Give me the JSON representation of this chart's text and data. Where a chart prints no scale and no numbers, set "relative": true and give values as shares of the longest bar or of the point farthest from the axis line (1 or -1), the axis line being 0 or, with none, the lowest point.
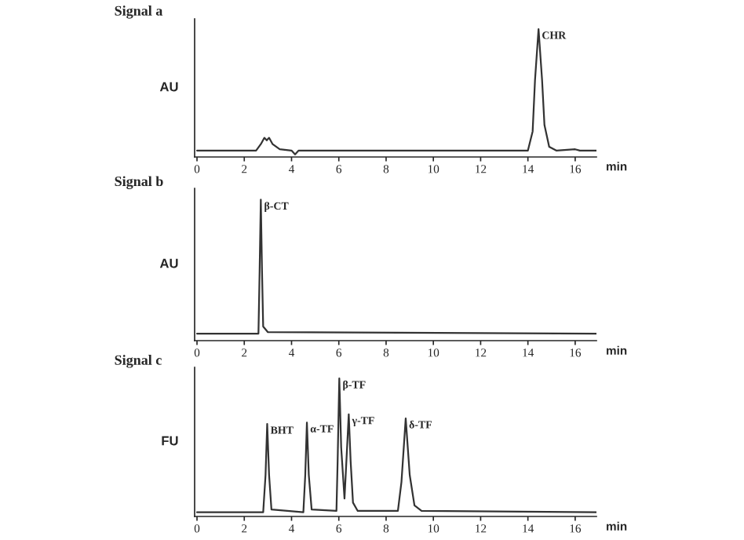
{
  "chart_data": [
    {
      "type": "line",
      "title": "Signal a",
      "ylabel": "AU",
      "xlabel": "min",
      "relative": true,
      "x": [
        0,
        2.5,
        2.7,
        2.85,
        2.95,
        3.05,
        3.2,
        3.5,
        4.0,
        4.15,
        4.3,
        14.0,
        14.2,
        14.3,
        14.45,
        14.6,
        14.7,
        14.9,
        15.2,
        16.0,
        16.2,
        16.9
      ],
      "series": [
        {
          "color": "#333333",
          "values": [
            0.05,
            0.05,
            0.1,
            0.15,
            0.13,
            0.15,
            0.1,
            0.06,
            0.05,
            0.02,
            0.05,
            0.05,
            0.2,
            0.6,
            1.0,
            0.6,
            0.25,
            0.08,
            0.05,
            0.06,
            0.05,
            0.05
          ]
        }
      ],
      "xlim": [
        -0.1,
        16.9
      ],
      "xticks": [
        0,
        2,
        4,
        6,
        8,
        10,
        12,
        14,
        16
      ],
      "annotations": [
        {
          "text": "CHR",
          "x": 14.45,
          "y": 1.0
        }
      ]
    },
    {
      "type": "line",
      "title": "Signal b",
      "ylabel": "AU",
      "xlabel": "min",
      "relative": true,
      "x": [
        0,
        2.6,
        2.65,
        2.7,
        2.75,
        2.8,
        3.0,
        16.9
      ],
      "series": [
        {
          "color": "#333333",
          "values": [
            0.05,
            0.05,
            0.5,
            1.0,
            0.5,
            0.1,
            0.06,
            0.05
          ]
        }
      ],
      "xlim": [
        -0.1,
        16.9
      ],
      "xticks": [
        0,
        2,
        4,
        6,
        8,
        10,
        12,
        14,
        16
      ],
      "annotations": [
        {
          "text": "β-CT",
          "x": 2.7,
          "y": 1.0
        }
      ]
    },
    {
      "type": "line",
      "title": "Signal c",
      "ylabel": "FU",
      "xlabel": "min",
      "relative": true,
      "x": [
        0,
        2.8,
        2.9,
        2.97,
        3.05,
        3.15,
        4.5,
        4.58,
        4.65,
        4.73,
        4.85,
        5.9,
        5.95,
        6.02,
        6.1,
        6.24,
        6.35,
        6.42,
        6.5,
        6.6,
        6.8,
        8.5,
        8.65,
        8.83,
        9.0,
        9.2,
        9.5,
        16.9
      ],
      "series": [
        {
          "color": "#333333",
          "values": [
            0.03,
            0.03,
            0.3,
            0.67,
            0.3,
            0.05,
            0.03,
            0.3,
            0.68,
            0.3,
            0.05,
            0.04,
            0.4,
            1.0,
            0.5,
            0.13,
            0.5,
            0.74,
            0.4,
            0.1,
            0.04,
            0.04,
            0.25,
            0.71,
            0.3,
            0.08,
            0.04,
            0.03
          ]
        }
      ],
      "xlim": [
        -0.1,
        16.9
      ],
      "xticks": [
        0,
        2,
        4,
        6,
        8,
        10,
        12,
        14,
        16
      ],
      "annotations": [
        {
          "text": "BHT",
          "x": 2.97,
          "y": 0.67
        },
        {
          "text": "α-TF",
          "x": 4.65,
          "y": 0.68
        },
        {
          "text": "β-TF",
          "x": 6.02,
          "y": 1.0
        },
        {
          "text": "γ-TF",
          "x": 6.42,
          "y": 0.74
        },
        {
          "text": "δ-TF",
          "x": 8.83,
          "y": 0.71
        }
      ]
    }
  ]
}
